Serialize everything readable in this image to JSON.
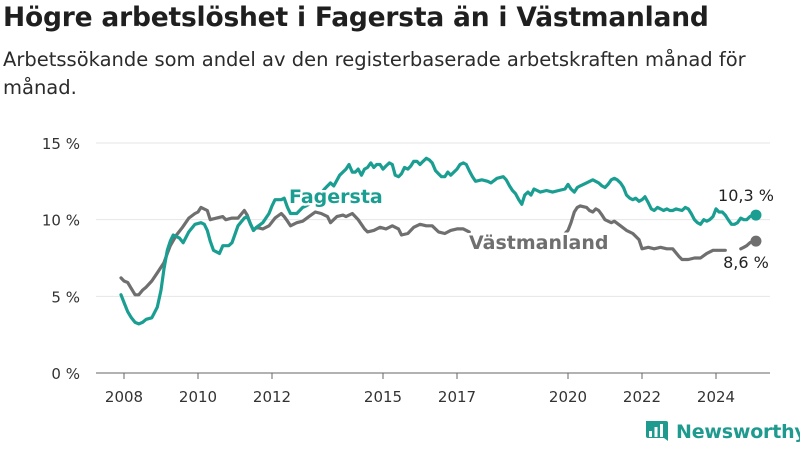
{
  "title": "Högre arbetslöshet i Fagersta än i Västmanland",
  "subtitle": "Arbetssökande som andel av den registerbaserade arbetskraften månad för månad.",
  "brand": {
    "name": "Newsworthy",
    "logo_icon": "bar-chart-logo-icon"
  },
  "chart_data": {
    "type": "line",
    "title": "Högre arbetslöshet i Fagersta än i Västmanland",
    "subtitle": "Arbetssökande som andel av den registerbaserade arbetskraften månad för månad.",
    "xlabel": "",
    "ylabel": "",
    "xlim": [
      2007.4,
      2025.7
    ],
    "ylim": [
      0,
      15
    ],
    "grid": true,
    "yticks": [
      {
        "value": 0,
        "label": "0 %"
      },
      {
        "value": 5,
        "label": "5 %"
      },
      {
        "value": 10,
        "label": "10 %"
      },
      {
        "value": 15,
        "label": "15 %"
      }
    ],
    "xticks": [
      {
        "value": 2008,
        "label": "2008"
      },
      {
        "value": 2010,
        "label": "2010"
      },
      {
        "value": 2012,
        "label": "2012"
      },
      {
        "value": 2015,
        "label": "2015"
      },
      {
        "value": 2017,
        "label": "2017"
      },
      {
        "value": 2020,
        "label": "2020"
      },
      {
        "value": 2022,
        "label": "2022"
      },
      {
        "value": 2024,
        "label": "2024"
      }
    ],
    "colors": {
      "Fagersta": "#1a9e92",
      "Västmanland": "#6f6f6f",
      "axis": "#666666",
      "grid": "#e6e6e6"
    },
    "series": [
      {
        "name": "Fagersta",
        "label": "Fagersta",
        "end_label": "10,3 %",
        "points": [
          [
            2007.92,
            5.1
          ],
          [
            2008.0,
            4.6
          ],
          [
            2008.1,
            4.0
          ],
          [
            2008.2,
            3.6
          ],
          [
            2008.3,
            3.3
          ],
          [
            2008.4,
            3.2
          ],
          [
            2008.5,
            3.3
          ],
          [
            2008.6,
            3.5
          ],
          [
            2008.75,
            3.6
          ],
          [
            2008.9,
            4.3
          ],
          [
            2009.0,
            5.4
          ],
          [
            2009.08,
            6.8
          ],
          [
            2009.17,
            8.0
          ],
          [
            2009.25,
            8.6
          ],
          [
            2009.33,
            9.0
          ],
          [
            2009.5,
            8.8
          ],
          [
            2009.6,
            8.5
          ],
          [
            2009.75,
            9.2
          ],
          [
            2009.92,
            9.7
          ],
          [
            2010.08,
            9.8
          ],
          [
            2010.17,
            9.7
          ],
          [
            2010.25,
            9.3
          ],
          [
            2010.33,
            8.6
          ],
          [
            2010.42,
            8.0
          ],
          [
            2010.58,
            7.8
          ],
          [
            2010.67,
            8.3
          ],
          [
            2010.83,
            8.3
          ],
          [
            2010.92,
            8.5
          ],
          [
            2011.08,
            9.6
          ],
          [
            2011.25,
            10.1
          ],
          [
            2011.33,
            10.2
          ],
          [
            2011.5,
            9.3
          ],
          [
            2011.58,
            9.5
          ],
          [
            2011.75,
            9.8
          ],
          [
            2011.92,
            10.4
          ],
          [
            2012.0,
            10.9
          ],
          [
            2012.08,
            11.3
          ],
          [
            2012.25,
            11.3
          ],
          [
            2012.33,
            11.4
          ],
          [
            2012.42,
            10.8
          ],
          [
            2012.5,
            10.4
          ],
          [
            2012.67,
            10.4
          ],
          [
            2012.83,
            10.8
          ],
          [
            2012.92,
            10.9
          ],
          [
            2013.0,
            11.0
          ],
          [
            2013.08,
            11.6
          ],
          [
            2013.25,
            11.5
          ],
          [
            2013.42,
            12.0
          ],
          [
            2013.58,
            12.4
          ],
          [
            2013.67,
            12.2
          ],
          [
            2013.83,
            12.9
          ],
          [
            2014.0,
            13.3
          ],
          [
            2014.08,
            13.6
          ],
          [
            2014.17,
            13.1
          ],
          [
            2014.25,
            13.1
          ],
          [
            2014.33,
            13.3
          ],
          [
            2014.42,
            12.9
          ],
          [
            2014.5,
            13.3
          ],
          [
            2014.58,
            13.4
          ],
          [
            2014.67,
            13.7
          ],
          [
            2014.75,
            13.4
          ],
          [
            2014.83,
            13.6
          ],
          [
            2014.92,
            13.6
          ],
          [
            2015.0,
            13.3
          ],
          [
            2015.08,
            13.5
          ],
          [
            2015.17,
            13.7
          ],
          [
            2015.25,
            13.6
          ],
          [
            2015.33,
            12.9
          ],
          [
            2015.42,
            12.8
          ],
          [
            2015.5,
            13.0
          ],
          [
            2015.58,
            13.4
          ],
          [
            2015.67,
            13.3
          ],
          [
            2015.75,
            13.5
          ],
          [
            2015.83,
            13.8
          ],
          [
            2015.92,
            13.8
          ],
          [
            2016.0,
            13.6
          ],
          [
            2016.08,
            13.8
          ],
          [
            2016.17,
            14.0
          ],
          [
            2016.25,
            13.9
          ],
          [
            2016.33,
            13.7
          ],
          [
            2016.42,
            13.2
          ],
          [
            2016.5,
            13.0
          ],
          [
            2016.58,
            12.8
          ],
          [
            2016.67,
            12.8
          ],
          [
            2016.75,
            13.1
          ],
          [
            2016.83,
            12.9
          ],
          [
            2017.0,
            13.3
          ],
          [
            2017.08,
            13.6
          ],
          [
            2017.17,
            13.7
          ],
          [
            2017.25,
            13.6
          ],
          [
            2017.33,
            13.2
          ],
          [
            2017.42,
            12.8
          ],
          [
            2017.5,
            12.5
          ],
          [
            2017.67,
            12.6
          ],
          [
            2017.83,
            12.5
          ],
          [
            2017.92,
            12.4
          ],
          [
            2018.08,
            12.7
          ],
          [
            2018.25,
            12.8
          ],
          [
            2018.33,
            12.6
          ],
          [
            2018.42,
            12.2
          ],
          [
            2018.5,
            11.9
          ],
          [
            2018.58,
            11.7
          ],
          [
            2018.67,
            11.3
          ],
          [
            2018.75,
            11.0
          ],
          [
            2018.83,
            11.6
          ],
          [
            2018.92,
            11.8
          ],
          [
            2019.0,
            11.6
          ],
          [
            2019.08,
            12.0
          ],
          [
            2019.25,
            11.8
          ],
          [
            2019.42,
            11.9
          ],
          [
            2019.58,
            11.8
          ],
          [
            2019.75,
            11.9
          ],
          [
            2019.92,
            12.0
          ],
          [
            2020.0,
            12.3
          ],
          [
            2020.08,
            12.0
          ],
          [
            2020.17,
            11.8
          ],
          [
            2020.25,
            12.1
          ],
          [
            2020.33,
            12.2
          ],
          [
            2020.5,
            12.4
          ],
          [
            2020.67,
            12.6
          ],
          [
            2020.83,
            12.4
          ],
          [
            2020.92,
            12.2
          ],
          [
            2021.0,
            12.1
          ],
          [
            2021.08,
            12.3
          ],
          [
            2021.17,
            12.6
          ],
          [
            2021.25,
            12.7
          ],
          [
            2021.33,
            12.6
          ],
          [
            2021.42,
            12.4
          ],
          [
            2021.5,
            12.1
          ],
          [
            2021.58,
            11.6
          ],
          [
            2021.67,
            11.4
          ],
          [
            2021.75,
            11.3
          ],
          [
            2021.83,
            11.4
          ],
          [
            2021.92,
            11.2
          ],
          [
            2022.0,
            11.3
          ],
          [
            2022.08,
            11.5
          ],
          [
            2022.17,
            11.1
          ],
          [
            2022.25,
            10.7
          ],
          [
            2022.33,
            10.6
          ],
          [
            2022.42,
            10.8
          ],
          [
            2022.5,
            10.7
          ],
          [
            2022.58,
            10.6
          ],
          [
            2022.67,
            10.7
          ],
          [
            2022.75,
            10.6
          ],
          [
            2022.83,
            10.6
          ],
          [
            2022.92,
            10.7
          ],
          [
            2023.08,
            10.6
          ],
          [
            2023.17,
            10.8
          ],
          [
            2023.25,
            10.7
          ],
          [
            2023.33,
            10.4
          ],
          [
            2023.42,
            10.0
          ],
          [
            2023.5,
            9.8
          ],
          [
            2023.58,
            9.7
          ],
          [
            2023.67,
            10.0
          ],
          [
            2023.75,
            9.9
          ],
          [
            2023.83,
            10.0
          ],
          [
            2023.92,
            10.2
          ],
          [
            2024.0,
            10.7
          ],
          [
            2024.08,
            10.5
          ],
          [
            2024.17,
            10.5
          ],
          [
            2024.25,
            10.3
          ],
          [
            2024.33,
            10.0
          ],
          [
            2024.42,
            9.7
          ],
          [
            2024.5,
            9.7
          ],
          [
            2024.58,
            9.8
          ],
          [
            2024.67,
            10.1
          ],
          [
            2024.75,
            10.0
          ],
          [
            2024.83,
            10.0
          ],
          [
            2024.92,
            10.2
          ],
          [
            2025.0,
            10.3
          ],
          [
            2025.08,
            10.3
          ]
        ]
      },
      {
        "name": "Västmanland",
        "label": "Västmanland",
        "end_label": "8,6 %",
        "points": [
          [
            2007.92,
            6.2
          ],
          [
            2008.0,
            6.0
          ],
          [
            2008.1,
            5.9
          ],
          [
            2008.2,
            5.5
          ],
          [
            2008.3,
            5.1
          ],
          [
            2008.4,
            5.1
          ],
          [
            2008.5,
            5.4
          ],
          [
            2008.6,
            5.6
          ],
          [
            2008.75,
            6.0
          ],
          [
            2008.92,
            6.6
          ],
          [
            2009.08,
            7.2
          ],
          [
            2009.17,
            7.8
          ],
          [
            2009.25,
            8.3
          ],
          [
            2009.42,
            9.0
          ],
          [
            2009.58,
            9.5
          ],
          [
            2009.75,
            10.1
          ],
          [
            2009.92,
            10.4
          ],
          [
            2010.0,
            10.5
          ],
          [
            2010.08,
            10.8
          ],
          [
            2010.25,
            10.6
          ],
          [
            2010.33,
            10.0
          ],
          [
            2010.5,
            10.1
          ],
          [
            2010.67,
            10.2
          ],
          [
            2010.75,
            10.0
          ],
          [
            2010.92,
            10.1
          ],
          [
            2011.08,
            10.1
          ],
          [
            2011.25,
            10.6
          ],
          [
            2011.33,
            10.3
          ],
          [
            2011.42,
            9.7
          ],
          [
            2011.5,
            9.3
          ],
          [
            2011.58,
            9.5
          ],
          [
            2011.75,
            9.4
          ],
          [
            2011.92,
            9.6
          ],
          [
            2012.08,
            10.1
          ],
          [
            2012.25,
            10.4
          ],
          [
            2012.33,
            10.2
          ],
          [
            2012.42,
            9.9
          ],
          [
            2012.5,
            9.6
          ],
          [
            2012.67,
            9.8
          ],
          [
            2012.83,
            9.9
          ],
          [
            2013.0,
            10.2
          ],
          [
            2013.17,
            10.5
          ],
          [
            2013.33,
            10.4
          ],
          [
            2013.5,
            10.2
          ],
          [
            2013.58,
            9.8
          ],
          [
            2013.75,
            10.2
          ],
          [
            2013.92,
            10.3
          ],
          [
            2014.0,
            10.2
          ],
          [
            2014.17,
            10.4
          ],
          [
            2014.25,
            10.2
          ],
          [
            2014.33,
            10.0
          ],
          [
            2014.5,
            9.4
          ],
          [
            2014.58,
            9.2
          ],
          [
            2014.75,
            9.3
          ],
          [
            2014.92,
            9.5
          ],
          [
            2015.08,
            9.4
          ],
          [
            2015.25,
            9.6
          ],
          [
            2015.42,
            9.4
          ],
          [
            2015.5,
            9.0
          ],
          [
            2015.67,
            9.1
          ],
          [
            2015.83,
            9.5
          ],
          [
            2016.0,
            9.7
          ],
          [
            2016.17,
            9.6
          ],
          [
            2016.33,
            9.6
          ],
          [
            2016.5,
            9.2
          ],
          [
            2016.67,
            9.1
          ],
          [
            2016.83,
            9.3
          ],
          [
            2017.0,
            9.4
          ],
          [
            2017.17,
            9.4
          ],
          [
            2017.33,
            9.2
          ]
        ],
        "points_b": [
          [
            2019.92,
            9.1
          ],
          [
            2020.0,
            9.3
          ],
          [
            2020.08,
            9.8
          ],
          [
            2020.17,
            10.5
          ],
          [
            2020.25,
            10.8
          ],
          [
            2020.33,
            10.9
          ],
          [
            2020.5,
            10.8
          ],
          [
            2020.58,
            10.6
          ],
          [
            2020.67,
            10.5
          ],
          [
            2020.75,
            10.7
          ],
          [
            2020.83,
            10.6
          ],
          [
            2020.92,
            10.3
          ],
          [
            2021.0,
            10.0
          ],
          [
            2021.17,
            9.8
          ],
          [
            2021.25,
            9.9
          ],
          [
            2021.42,
            9.6
          ],
          [
            2021.58,
            9.3
          ],
          [
            2021.75,
            9.1
          ],
          [
            2021.92,
            8.7
          ],
          [
            2022.0,
            8.1
          ],
          [
            2022.17,
            8.2
          ],
          [
            2022.33,
            8.1
          ],
          [
            2022.5,
            8.2
          ],
          [
            2022.67,
            8.1
          ],
          [
            2022.83,
            8.1
          ],
          [
            2023.0,
            7.6
          ],
          [
            2023.08,
            7.4
          ],
          [
            2023.25,
            7.4
          ],
          [
            2023.42,
            7.5
          ],
          [
            2023.58,
            7.5
          ],
          [
            2023.75,
            7.8
          ],
          [
            2023.92,
            8.0
          ],
          [
            2024.08,
            8.0
          ],
          [
            2024.25,
            8.0
          ]
        ],
        "points_c": [
          [
            2024.67,
            8.1
          ],
          [
            2024.75,
            8.2
          ],
          [
            2024.83,
            8.3
          ],
          [
            2024.92,
            8.5
          ],
          [
            2025.0,
            8.6
          ],
          [
            2025.08,
            8.6
          ]
        ]
      }
    ]
  }
}
